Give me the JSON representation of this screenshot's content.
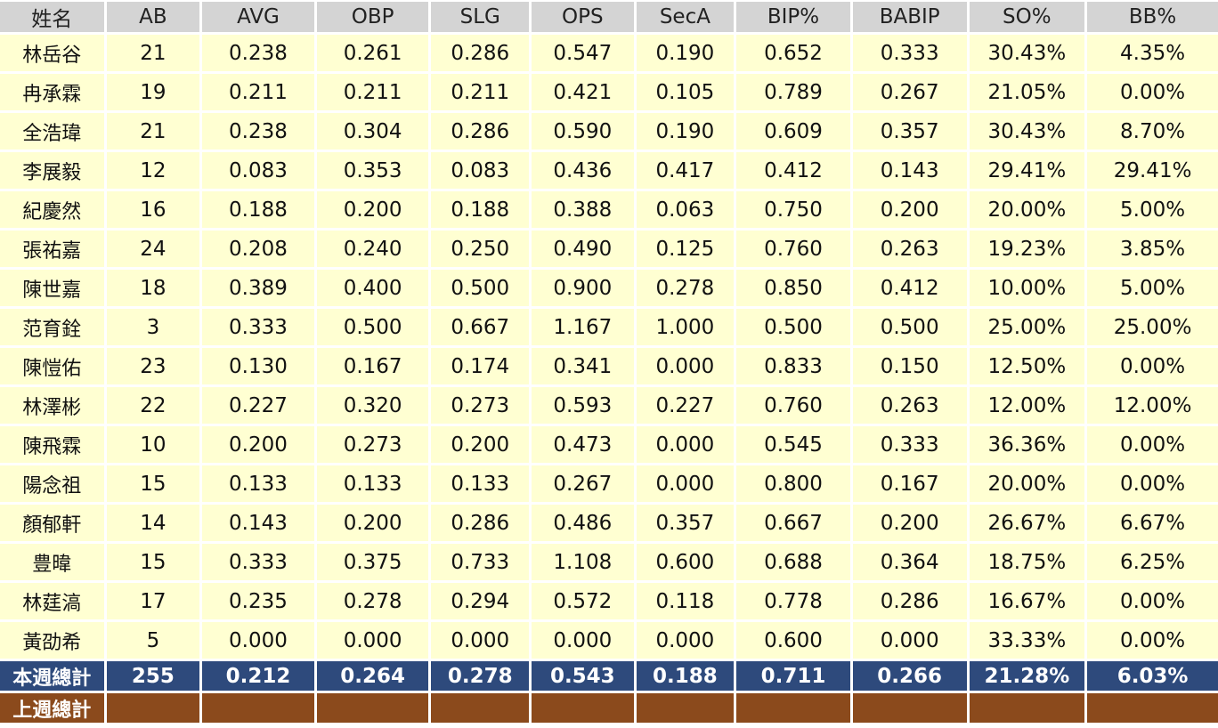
{
  "columns": [
    "姓名",
    "AB",
    "AVG",
    "OBP",
    "SLG",
    "OPS",
    "SecA",
    "BIP%",
    "BABIP",
    "SO%",
    "BB%"
  ],
  "rows": [
    [
      "林岳谷",
      "21",
      "0.238",
      "0.261",
      "0.286",
      "0.547",
      "0.190",
      "0.652",
      "0.333",
      "30.43%",
      "4.35%"
    ],
    [
      "冉承霖",
      "19",
      "0.211",
      "0.211",
      "0.211",
      "0.421",
      "0.105",
      "0.789",
      "0.267",
      "21.05%",
      "0.00%"
    ],
    [
      "全浩瑋",
      "21",
      "0.238",
      "0.304",
      "0.286",
      "0.590",
      "0.190",
      "0.609",
      "0.357",
      "30.43%",
      "8.70%"
    ],
    [
      "李展毅",
      "12",
      "0.083",
      "0.353",
      "0.083",
      "0.436",
      "0.417",
      "0.412",
      "0.143",
      "29.41%",
      "29.41%"
    ],
    [
      "紀慶然",
      "16",
      "0.188",
      "0.200",
      "0.188",
      "0.388",
      "0.063",
      "0.750",
      "0.200",
      "20.00%",
      "5.00%"
    ],
    [
      "張祐嘉",
      "24",
      "0.208",
      "0.240",
      "0.250",
      "0.490",
      "0.125",
      "0.760",
      "0.263",
      "19.23%",
      "3.85%"
    ],
    [
      "陳世嘉",
      "18",
      "0.389",
      "0.400",
      "0.500",
      "0.900",
      "0.278",
      "0.850",
      "0.412",
      "10.00%",
      "5.00%"
    ],
    [
      "范育銓",
      "3",
      "0.333",
      "0.500",
      "0.667",
      "1.167",
      "1.000",
      "0.500",
      "0.500",
      "25.00%",
      "25.00%"
    ],
    [
      "陳愷佑",
      "23",
      "0.130",
      "0.167",
      "0.174",
      "0.341",
      "0.000",
      "0.833",
      "0.150",
      "12.50%",
      "0.00%"
    ],
    [
      "林澤彬",
      "22",
      "0.227",
      "0.320",
      "0.273",
      "0.593",
      "0.227",
      "0.760",
      "0.263",
      "12.00%",
      "12.00%"
    ],
    [
      "陳飛霖",
      "10",
      "0.200",
      "0.273",
      "0.200",
      "0.473",
      "0.000",
      "0.545",
      "0.333",
      "36.36%",
      "0.00%"
    ],
    [
      "陽念祖",
      "15",
      "0.133",
      "0.133",
      "0.133",
      "0.267",
      "0.000",
      "0.800",
      "0.167",
      "20.00%",
      "0.00%"
    ],
    [
      "顏郁軒",
      "14",
      "0.143",
      "0.200",
      "0.286",
      "0.486",
      "0.357",
      "0.667",
      "0.200",
      "26.67%",
      "6.67%"
    ],
    [
      "豊暐",
      "15",
      "0.333",
      "0.375",
      "0.733",
      "1.108",
      "0.600",
      "0.688",
      "0.364",
      "18.75%",
      "6.25%"
    ],
    [
      "林莛滈",
      "17",
      "0.235",
      "0.278",
      "0.294",
      "0.572",
      "0.118",
      "0.778",
      "0.286",
      "16.67%",
      "0.00%"
    ],
    [
      "黃劭希",
      "5",
      "0.000",
      "0.000",
      "0.000",
      "0.000",
      "0.000",
      "0.600",
      "0.000",
      "33.33%",
      "0.00%"
    ]
  ],
  "totals": {
    "this_week": [
      "本週總計",
      "255",
      "0.212",
      "0.264",
      "0.278",
      "0.543",
      "0.188",
      "0.711",
      "0.266",
      "21.28%",
      "6.03%"
    ],
    "last_week": [
      "上週總計",
      "",
      "",
      "",
      "",
      "",
      "",
      "",
      "",
      "",
      ""
    ]
  },
  "colors": {
    "header_bg": "#d4d4d4",
    "row_bg": "#ffffd2",
    "this_week_bg": "#2e4a7c",
    "last_week_bg": "#8b4a1c"
  }
}
